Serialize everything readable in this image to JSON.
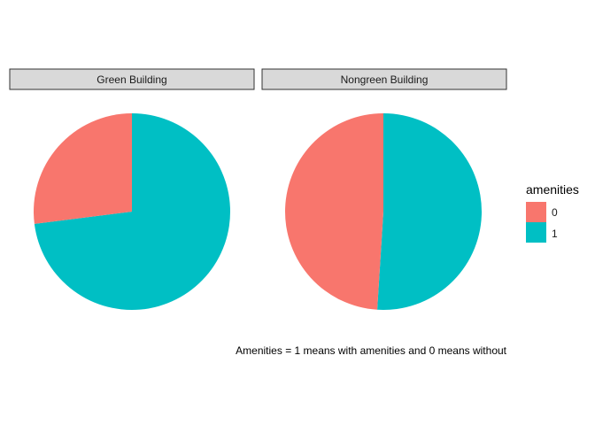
{
  "chart_data": {
    "type": "pie",
    "facets": [
      {
        "label": "Green Building",
        "slices": [
          {
            "category": "0",
            "value": 0.27
          },
          {
            "category": "1",
            "value": 0.73
          }
        ]
      },
      {
        "label": "Nongreen Building",
        "slices": [
          {
            "category": "0",
            "value": 0.49
          },
          {
            "category": "1",
            "value": 0.51
          }
        ]
      }
    ],
    "legend": {
      "title": "amenities",
      "placement": "right",
      "entries": [
        {
          "label": "0",
          "color": "#F8766D"
        },
        {
          "label": "1",
          "color": "#00BFC4"
        }
      ]
    },
    "caption": "Amenities = 1 means with amenities and 0 means without",
    "grid": false
  }
}
